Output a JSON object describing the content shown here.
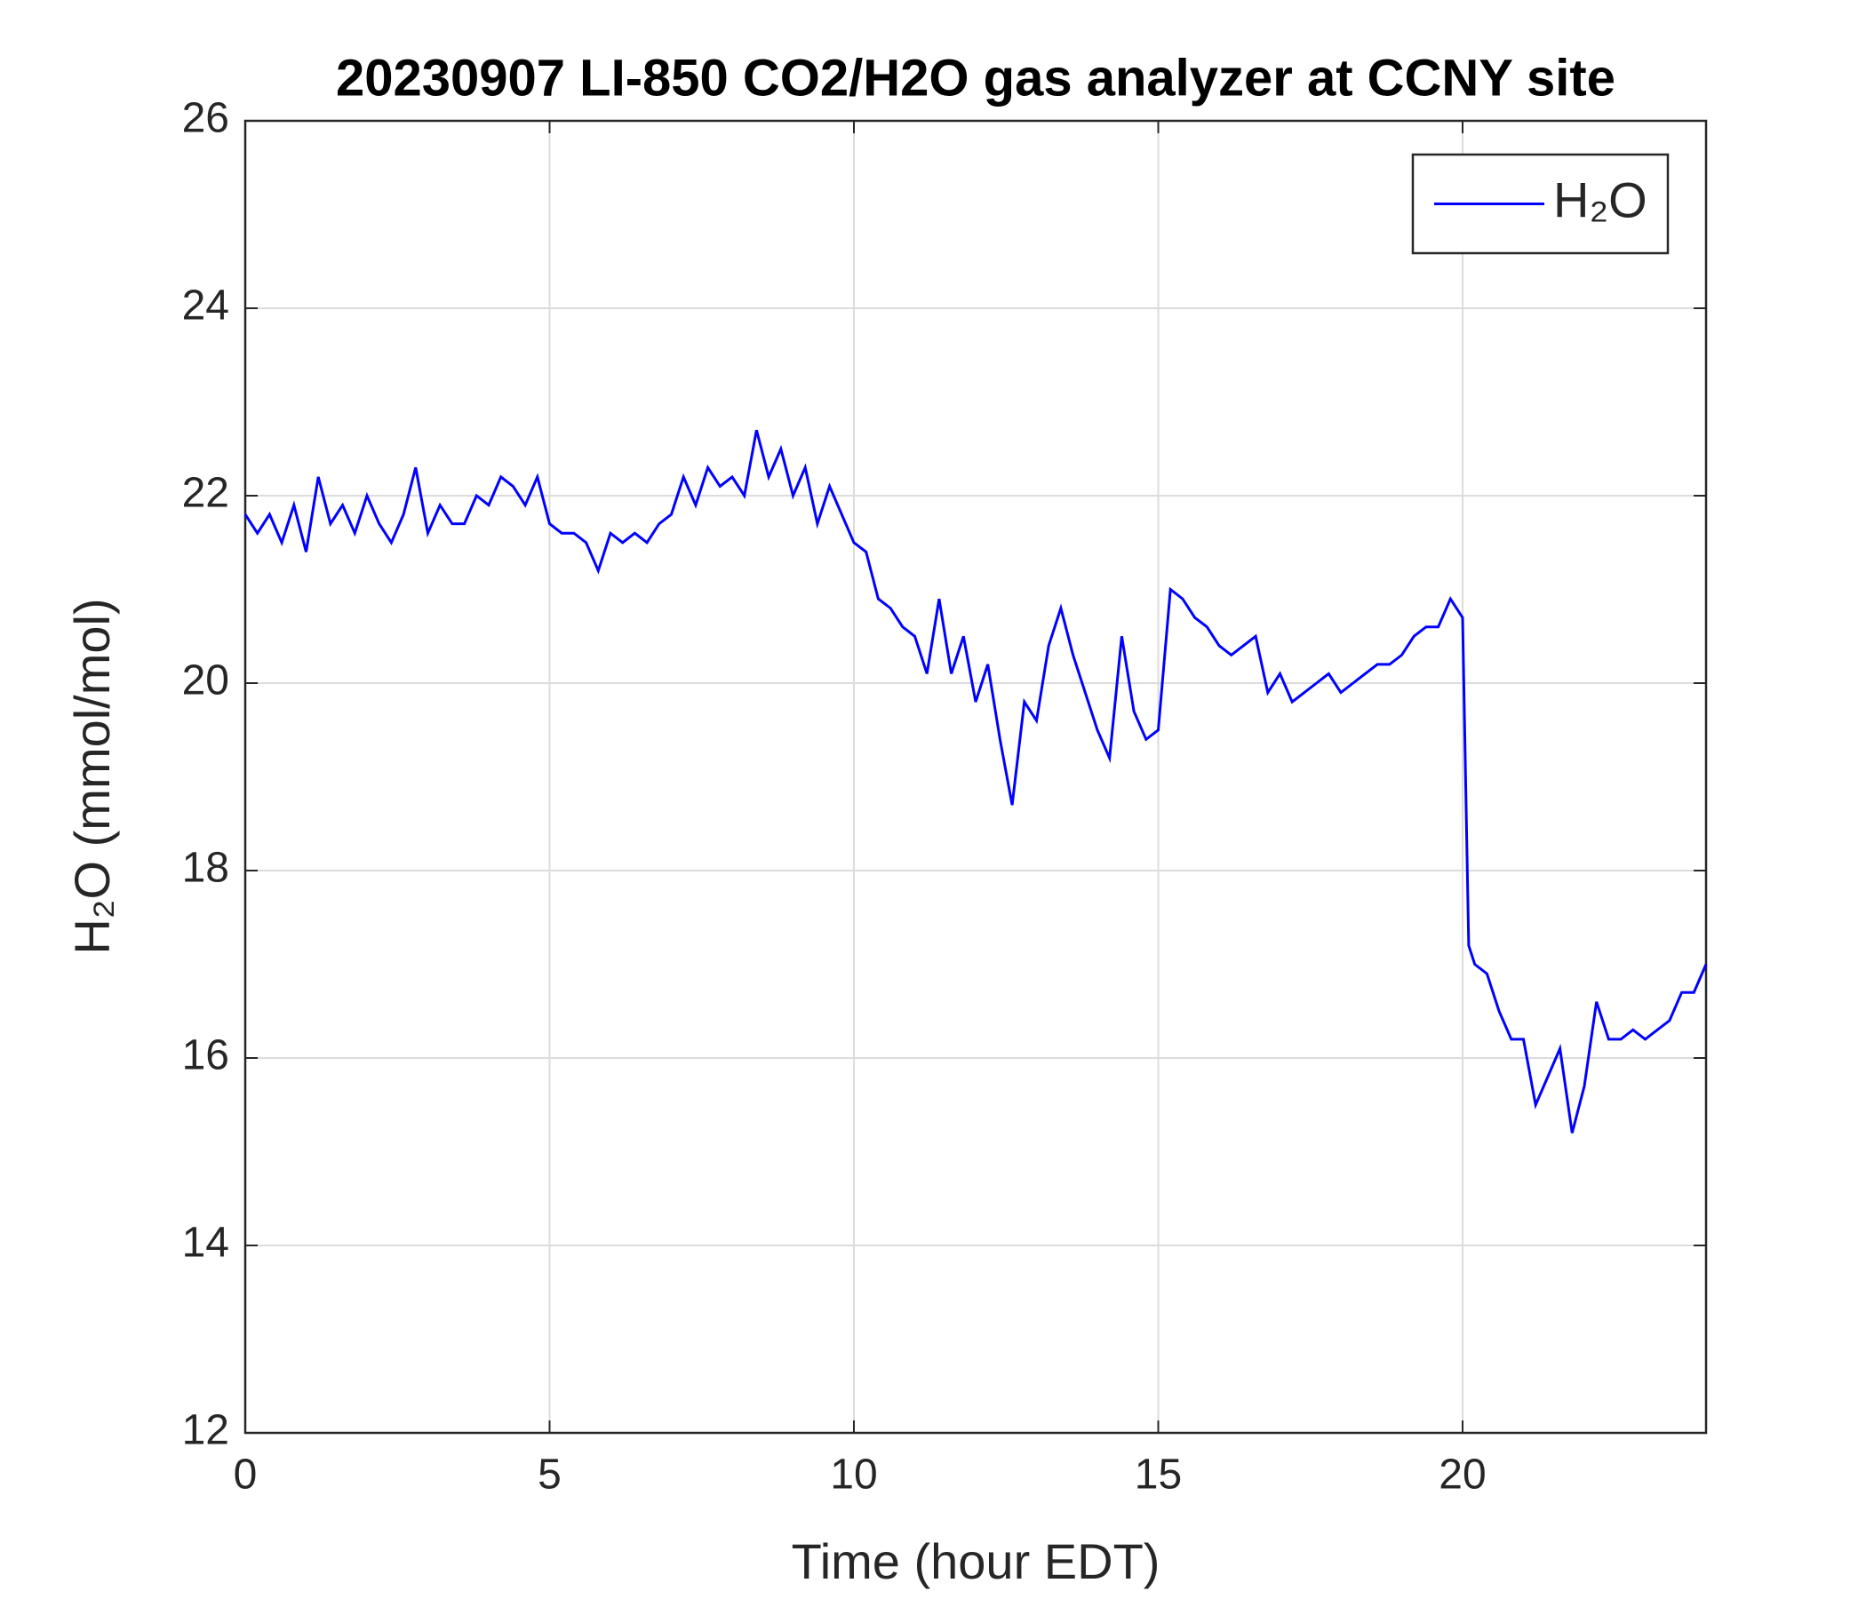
{
  "chart_data": {
    "type": "line",
    "title": "20230907 LI-850 CO2/H2O gas analyzer at CCNY site",
    "x_label": "Time (hour EDT)",
    "y_label": "H₂O (mmol/mol)",
    "x": [
      0,
      0.2,
      0.4,
      0.6,
      0.8,
      1.0,
      1.2,
      1.4,
      1.6,
      1.8,
      2.0,
      2.2,
      2.4,
      2.6,
      2.8,
      3.0,
      3.2,
      3.4,
      3.6,
      3.8,
      4.0,
      4.2,
      4.4,
      4.6,
      4.8,
      5.0,
      5.2,
      5.4,
      5.6,
      5.8,
      6.0,
      6.2,
      6.4,
      6.6,
      6.8,
      7.0,
      7.2,
      7.4,
      7.6,
      7.8,
      8.0,
      8.2,
      8.4,
      8.6,
      8.8,
      9.0,
      9.2,
      9.4,
      9.6,
      9.8,
      10.0,
      10.2,
      10.4,
      10.6,
      10.8,
      11.0,
      11.2,
      11.4,
      11.6,
      11.8,
      12.0,
      12.2,
      12.4,
      12.6,
      12.8,
      13.0,
      13.2,
      13.4,
      13.6,
      13.8,
      14.0,
      14.2,
      14.4,
      14.6,
      14.8,
      15.0,
      15.2,
      15.4,
      15.6,
      15.8,
      16.0,
      16.2,
      16.4,
      16.6,
      16.8,
      17.0,
      17.2,
      17.4,
      17.6,
      17.8,
      18.0,
      18.2,
      18.4,
      18.6,
      18.8,
      19.0,
      19.2,
      19.4,
      19.6,
      19.8,
      20.0,
      20.1,
      20.2,
      20.4,
      20.6,
      20.8,
      21.0,
      21.2,
      21.4,
      21.6,
      21.8,
      22.0,
      22.2,
      22.4,
      22.6,
      22.8,
      23.0,
      23.2,
      23.4,
      23.6,
      23.8,
      24.0
    ],
    "series": [
      {
        "name": "H₂O",
        "color": "#0000ff",
        "values": [
          21.8,
          21.6,
          21.8,
          21.5,
          21.9,
          21.4,
          22.2,
          21.7,
          21.9,
          21.6,
          22.0,
          21.7,
          21.5,
          21.8,
          22.3,
          21.6,
          21.9,
          21.7,
          21.7,
          22.0,
          21.9,
          22.2,
          22.1,
          21.9,
          22.2,
          21.7,
          21.6,
          21.6,
          21.5,
          21.2,
          21.6,
          21.5,
          21.6,
          21.5,
          21.7,
          21.8,
          22.2,
          21.9,
          22.3,
          22.1,
          22.2,
          22.0,
          22.7,
          22.2,
          22.5,
          22.0,
          22.3,
          21.7,
          22.1,
          21.8,
          21.5,
          21.4,
          20.9,
          20.8,
          20.6,
          20.5,
          20.1,
          20.9,
          20.1,
          20.5,
          19.8,
          20.2,
          19.4,
          18.7,
          19.8,
          19.6,
          20.4,
          20.8,
          20.3,
          19.9,
          19.5,
          19.2,
          20.5,
          19.7,
          19.4,
          19.5,
          21.0,
          20.9,
          20.7,
          20.6,
          20.4,
          20.3,
          20.4,
          20.5,
          19.9,
          20.1,
          19.8,
          19.9,
          20.0,
          20.1,
          19.9,
          20.0,
          20.1,
          20.2,
          20.2,
          20.3,
          20.5,
          20.6,
          20.6,
          20.9,
          20.7,
          17.2,
          17.0,
          16.9,
          16.5,
          16.2,
          16.2,
          15.5,
          15.8,
          16.1,
          15.2,
          15.7,
          16.6,
          16.2,
          16.2,
          16.3,
          16.2,
          16.3,
          16.4,
          16.7,
          16.7,
          17.0
        ]
      }
    ],
    "xlim": [
      0,
      24
    ],
    "xticks": [
      0,
      5,
      10,
      15,
      20
    ],
    "ylim": [
      12,
      26
    ],
    "yticks": [
      12,
      14,
      16,
      18,
      20,
      22,
      24,
      26
    ],
    "grid": true,
    "legend": "upper right"
  }
}
